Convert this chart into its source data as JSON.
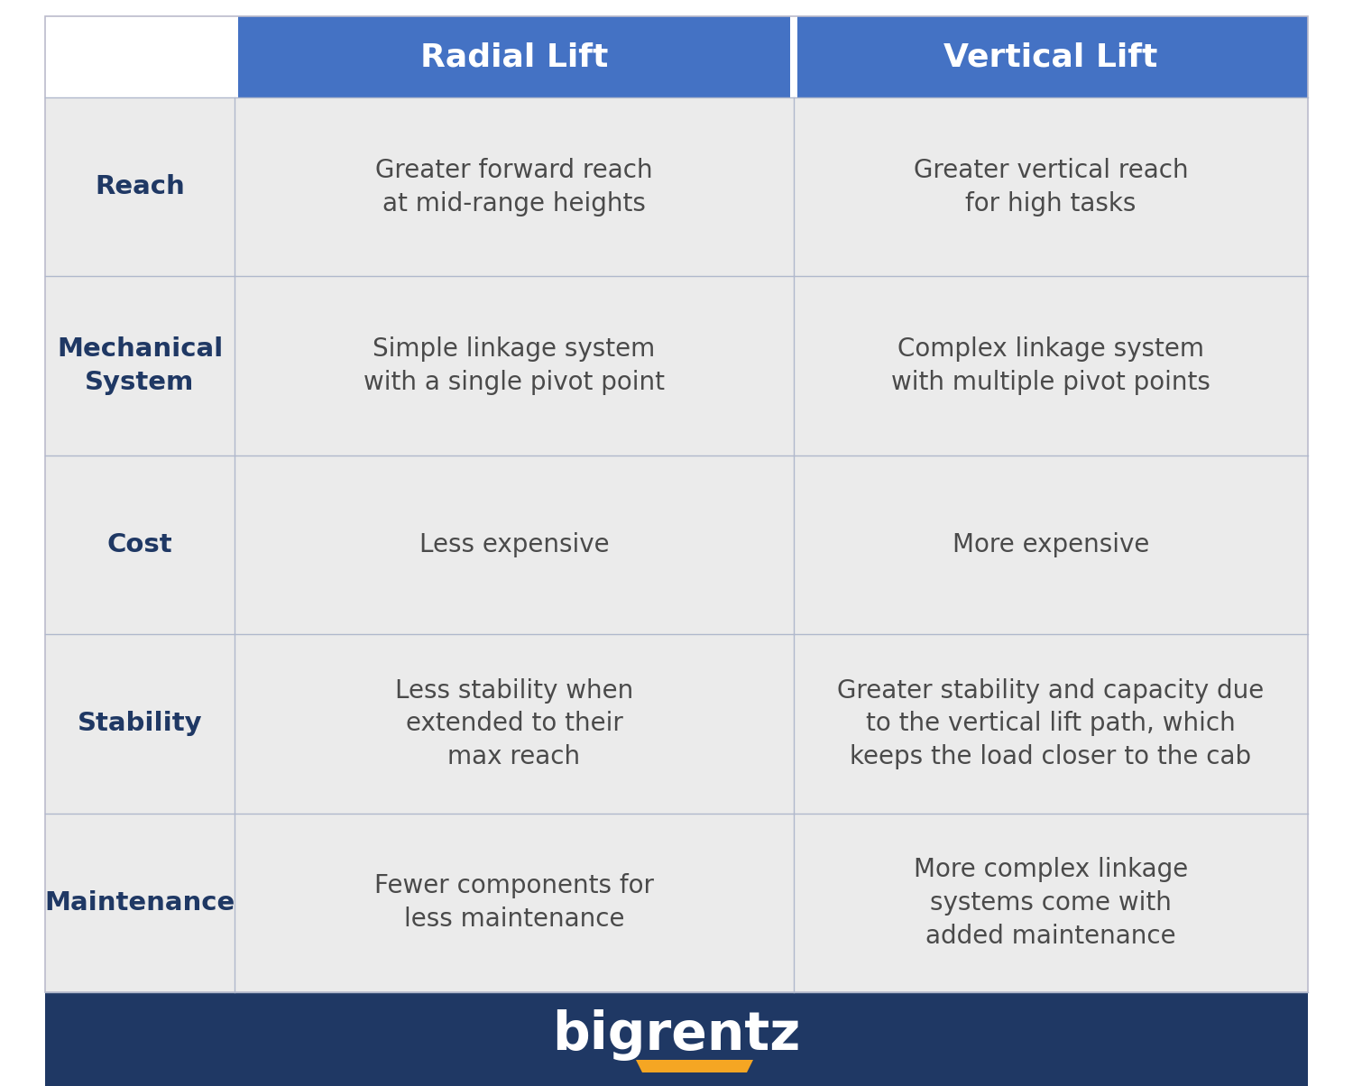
{
  "header_bg_color": "#4472C4",
  "header_text_color": "#FFFFFF",
  "row_bg_color": "#EBEBEB",
  "row_label_text_color": "#1F3864",
  "row_content_text_color": "#4A4A4A",
  "divider_color": "#B0B8CC",
  "footer_bg_color": "#1F3864",
  "footer_text_color": "#FFFFFF",
  "footer_accent_color": "#F5A623",
  "col_headers": [
    "Radial Lift",
    "Vertical Lift"
  ],
  "row_labels": [
    "Reach",
    "Mechanical\nSystem",
    "Cost",
    "Stability",
    "Maintenance"
  ],
  "radial_data": [
    "Greater forward reach\nat mid-range heights",
    "Simple linkage system\nwith a single pivot point",
    "Less expensive",
    "Less stability when\nextended to their\nmax reach",
    "Fewer components for\nless maintenance"
  ],
  "vertical_data": [
    "Greater vertical reach\nfor high tasks",
    "Complex linkage system\nwith multiple pivot points",
    "More expensive",
    "Greater stability and capacity due\nto the vertical lift path, which\nkeeps the load closer to the cab",
    "More complex linkage\nsystems come with\nadded maintenance"
  ],
  "figsize": [
    15.0,
    12.04
  ],
  "dpi": 100
}
